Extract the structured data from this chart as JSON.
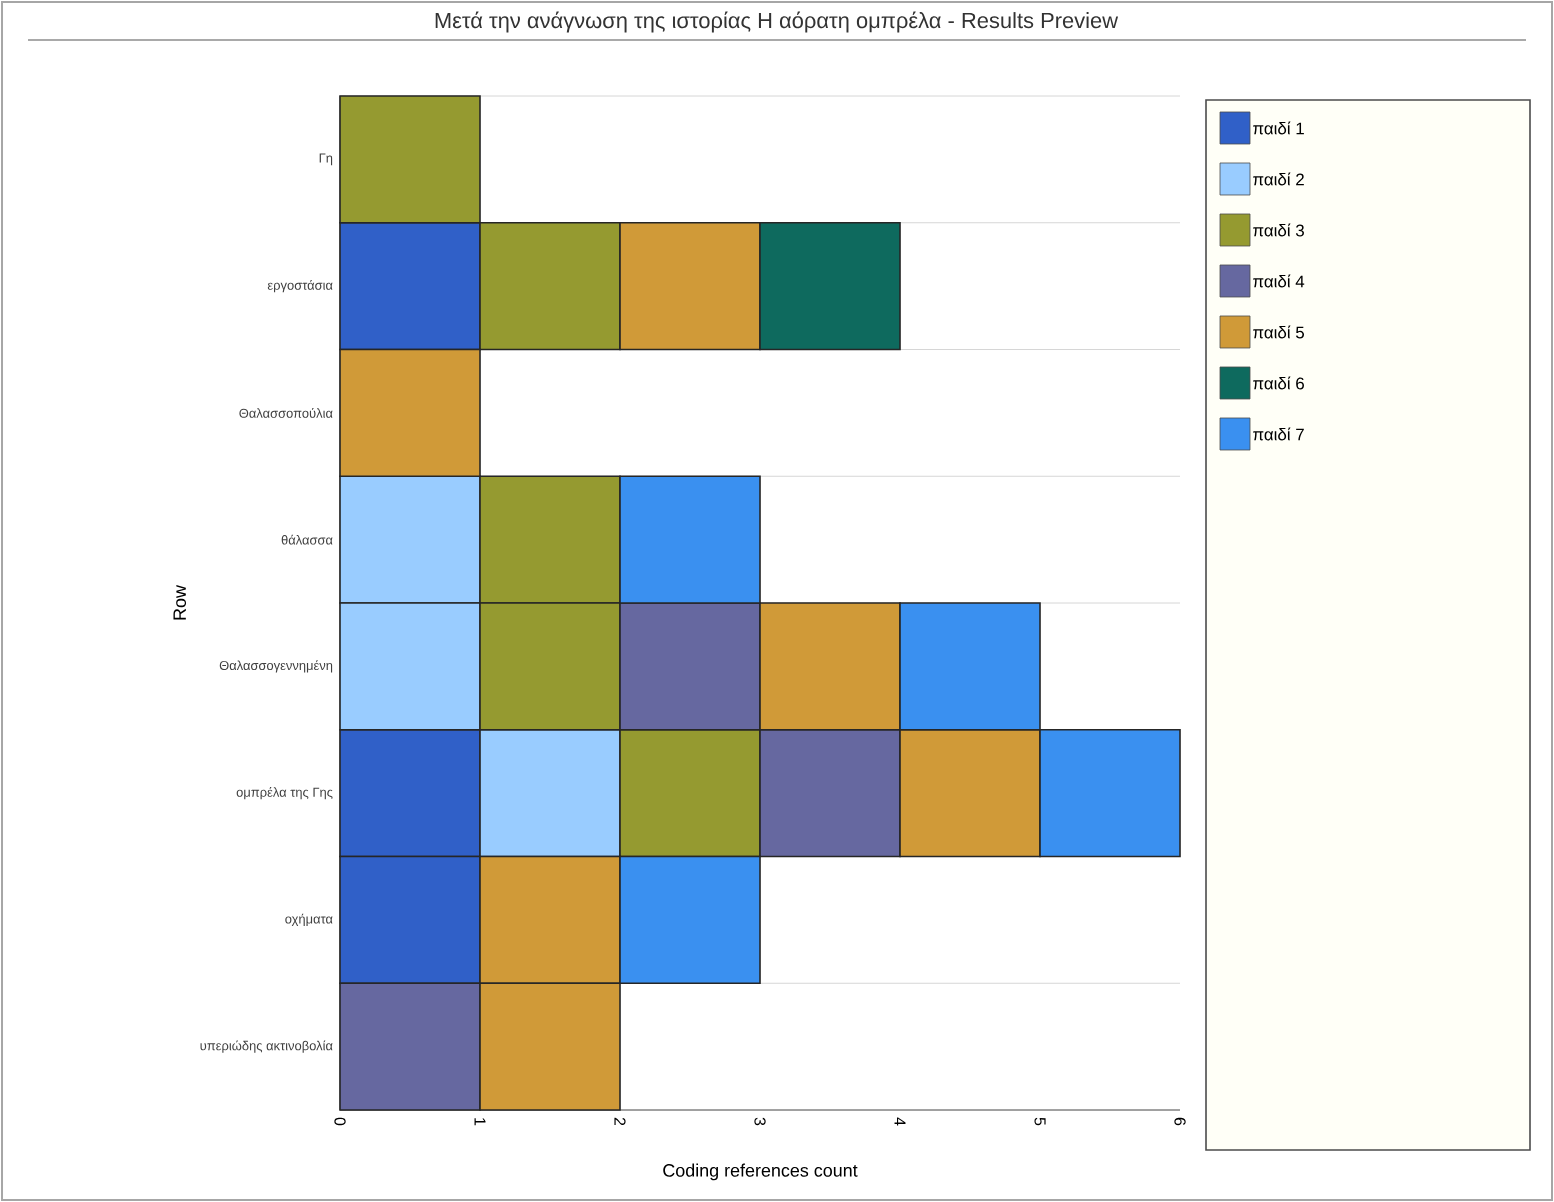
{
  "chart_data": {
    "type": "bar",
    "orientation": "horizontal",
    "stacked": true,
    "title": "Μετά την ανάγνωση της ιστορίας Η αόρατη ομπρέλα - Results Preview",
    "xlabel": "Coding references count",
    "ylabel": "Row",
    "categories": [
      "Γη",
      "εργοστάσια",
      "Θαλασσοπούλια",
      "θάλασσα",
      "Θαλασσογεννημένη",
      "ομπρέλα της Γης",
      "οχήματα",
      "υπεριώδης ακτινοβολία"
    ],
    "series": [
      {
        "name": "παιδί 1",
        "color": "#3060c8",
        "values": [
          null,
          1,
          null,
          null,
          null,
          1,
          1,
          null
        ]
      },
      {
        "name": "παιδί 2",
        "color": "#99ccff",
        "values": [
          null,
          null,
          null,
          1,
          1,
          1,
          null,
          null
        ]
      },
      {
        "name": "παιδί 3",
        "color": "#959a30",
        "values": [
          1,
          1,
          null,
          1,
          1,
          1,
          null,
          null
        ]
      },
      {
        "name": "παιδί 4",
        "color": "#6668a0",
        "values": [
          null,
          null,
          null,
          null,
          1,
          1,
          null,
          1
        ]
      },
      {
        "name": "παιδί 5",
        "color": "#d09a38",
        "values": [
          null,
          1,
          1,
          null,
          1,
          1,
          1,
          1
        ]
      },
      {
        "name": "παιδί 6",
        "color": "#0e6a5e",
        "values": [
          null,
          1,
          null,
          null,
          null,
          null,
          null,
          null
        ]
      },
      {
        "name": "παιδί 7",
        "color": "#3a90f0",
        "values": [
          null,
          null,
          null,
          1,
          1,
          1,
          1,
          null
        ]
      }
    ],
    "xlim": [
      0,
      6
    ],
    "xticks": [
      0,
      1,
      2,
      3,
      4,
      5,
      6
    ],
    "grid": "y",
    "legend": "right"
  }
}
